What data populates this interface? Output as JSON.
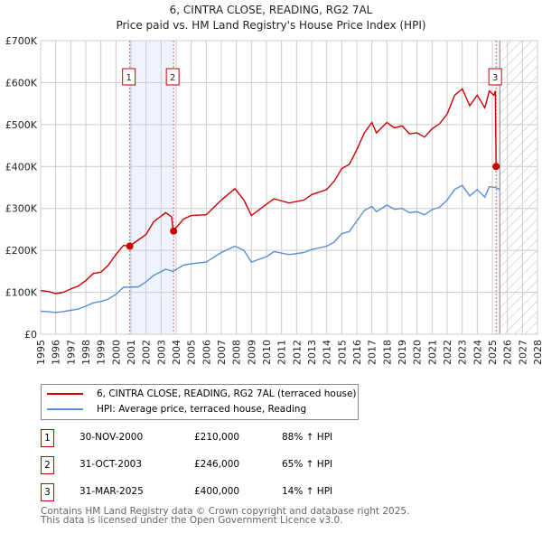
{
  "chart_data": {
    "type": "line",
    "title": "6, CINTRA CLOSE, READING, RG2 7AL",
    "subtitle": "Price paid vs. HM Land Registry's House Price Index (HPI)",
    "xlim": [
      1995,
      2028
    ],
    "ylim": [
      0,
      700000
    ],
    "x_ticks": [
      "1995",
      "1996",
      "1997",
      "1998",
      "1999",
      "2000",
      "2001",
      "2002",
      "2003",
      "2004",
      "2005",
      "2006",
      "2007",
      "2008",
      "2009",
      "2010",
      "2011",
      "2012",
      "2013",
      "2014",
      "2015",
      "2016",
      "2017",
      "2018",
      "2019",
      "2020",
      "2021",
      "2022",
      "2023",
      "2024",
      "2025",
      "2026",
      "2027",
      "2028"
    ],
    "y_ticks": [
      {
        "v": 0,
        "l": "£0"
      },
      {
        "v": 100000,
        "l": "£100K"
      },
      {
        "v": 200000,
        "l": "£200K"
      },
      {
        "v": 300000,
        "l": "£300K"
      },
      {
        "v": 400000,
        "l": "£400K"
      },
      {
        "v": 500000,
        "l": "£500K"
      },
      {
        "v": 600000,
        "l": "£600K"
      },
      {
        "v": 700000,
        "l": "£700K"
      }
    ],
    "series": [
      {
        "name": "6, CINTRA CLOSE, READING, RG2 7AL (terraced house)",
        "color": "#cc0000",
        "x": [
          1995,
          1995.5,
          1996,
          1996.5,
          1997,
          1997.5,
          1998,
          1998.5,
          1999,
          1999.5,
          2000,
          2000.5,
          2000.9,
          2001.5,
          2002,
          2002.5,
          2003.3,
          2003.7,
          2003.8,
          2004.5,
          2005,
          2006,
          2007,
          2007.9,
          2008.5,
          2009,
          2010,
          2010.5,
          2011.5,
          2012.5,
          2013,
          2014,
          2014.5,
          2015,
          2015.5,
          2016,
          2016.5,
          2017,
          2017.3,
          2018,
          2018.5,
          2019,
          2019.5,
          2020,
          2020.5,
          2021,
          2021.5,
          2022,
          2022.5,
          2023,
          2023.5,
          2024,
          2024.5,
          2024.8,
          2025.1,
          2025.2,
          2025.25
        ],
        "y": [
          104000,
          102000,
          97000,
          100000,
          108000,
          115000,
          128000,
          145000,
          148000,
          165000,
          190000,
          212000,
          210000,
          225000,
          238000,
          268000,
          290000,
          280000,
          246000,
          275000,
          283000,
          285000,
          320000,
          347000,
          320000,
          283000,
          310000,
          323000,
          313000,
          320000,
          333000,
          345000,
          365000,
          395000,
          405000,
          440000,
          480000,
          505000,
          480000,
          505000,
          492000,
          497000,
          478000,
          480000,
          470000,
          490000,
          502000,
          525000,
          570000,
          585000,
          545000,
          570000,
          540000,
          580000,
          570000,
          580000,
          400000
        ]
      },
      {
        "name": "HPI: Average price, terraced house, Reading",
        "color": "#5b8fd4",
        "x": [
          1995,
          1995.5,
          1996,
          1996.5,
          1997,
          1997.5,
          1998,
          1998.5,
          1999,
          1999.5,
          2000,
          2000.5,
          2001.5,
          2002,
          2002.5,
          2003.3,
          2003.8,
          2004.5,
          2005,
          2006,
          2007,
          2007.9,
          2008.5,
          2009,
          2010,
          2010.5,
          2011.5,
          2012.5,
          2013,
          2014,
          2014.5,
          2015,
          2015.5,
          2016,
          2016.5,
          2017,
          2017.3,
          2018,
          2018.5,
          2019,
          2019.5,
          2020,
          2020.5,
          2021,
          2021.5,
          2022,
          2022.5,
          2023,
          2023.5,
          2024,
          2024.5,
          2024.8,
          2025.2,
          2025.5
        ],
        "y": [
          55000,
          54000,
          52000,
          54000,
          57000,
          60000,
          67000,
          75000,
          78000,
          84000,
          95000,
          112000,
          113000,
          125000,
          140000,
          155000,
          150000,
          165000,
          168000,
          172000,
          195000,
          210000,
          200000,
          172000,
          185000,
          197000,
          190000,
          195000,
          202000,
          210000,
          220000,
          240000,
          245000,
          270000,
          295000,
          305000,
          292000,
          308000,
          298000,
          300000,
          290000,
          292000,
          285000,
          297000,
          303000,
          320000,
          345000,
          355000,
          330000,
          345000,
          327000,
          352000,
          350000,
          345000
        ]
      }
    ],
    "transactions": [
      {
        "n": "1",
        "date": "30-NOV-2000",
        "x": 2000.92,
        "price": "£210,000",
        "v": 210000,
        "hpi": "88% ↑ HPI"
      },
      {
        "n": "2",
        "date": "31-OCT-2003",
        "x": 2003.83,
        "price": "£246,000",
        "v": 246000,
        "hpi": "65% ↑ HPI"
      },
      {
        "n": "3",
        "date": "31-MAR-2025",
        "x": 2025.25,
        "price": "£400,000",
        "v": 400000,
        "hpi": "14% ↑ HPI"
      }
    ],
    "forecast_start": 2025.5
  },
  "footer": [
    "Contains HM Land Registry data © Crown copyright and database right 2025.",
    "This data is licensed under the Open Government Licence v3.0."
  ]
}
